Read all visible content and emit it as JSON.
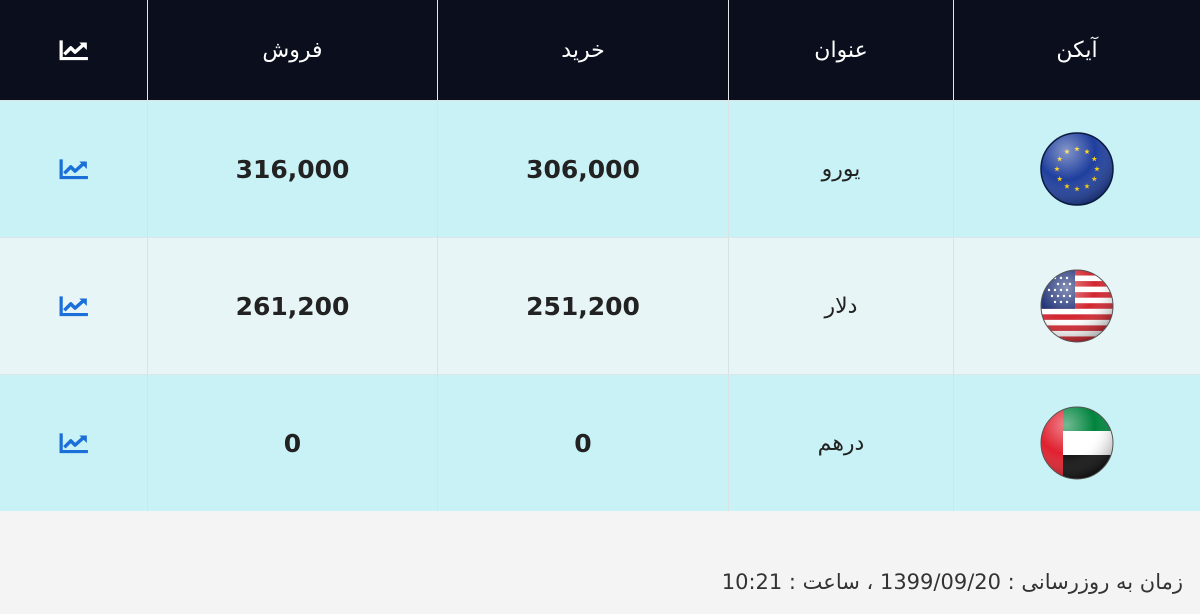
{
  "header": {
    "columns": [
      "آیکن",
      "عنوان",
      "خرید",
      "فروش"
    ]
  },
  "table": {
    "rows": [
      {
        "name": "یورو",
        "buy": "306,000",
        "sell": "316,000"
      },
      {
        "name": "دلار",
        "buy": "251,200",
        "sell": "261,200"
      },
      {
        "name": "درهم",
        "buy": "0",
        "sell": "0"
      }
    ]
  },
  "footer": {
    "updated": "زمان به روزرسانی : 1399/09/20 ، ساعت : 10:21"
  }
}
